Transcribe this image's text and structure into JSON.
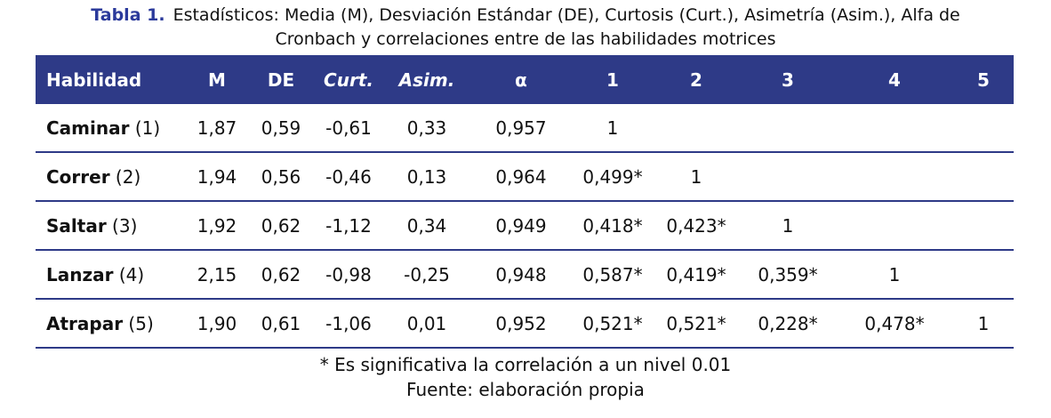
{
  "colors": {
    "header_bg": "#2E3A87",
    "title_accent": "#2B3A9B",
    "row_border": "#2E3A87",
    "header_text": "#ffffff",
    "body_text": "#111111"
  },
  "title": {
    "label": "Tabla 1.",
    "line1": "Estadísticos: Media (M), Desviación Estándar (DE), Curtosis (Curt.), Asimetría (Asim.), Alfa de",
    "line2": "Cronbach y correlaciones entre de las habilidades motrices"
  },
  "table": {
    "columns": [
      "Habilidad",
      "M",
      "DE",
      "Curt.",
      "Asim.",
      "α",
      "1",
      "2",
      "3",
      "4",
      "5"
    ],
    "rows": [
      {
        "name": "Caminar",
        "num": "(1)",
        "values": [
          "1,87",
          "0,59",
          "-0,61",
          "0,33",
          "0,957",
          "1",
          "",
          "",
          "",
          ""
        ]
      },
      {
        "name": "Correr",
        "num": "(2)",
        "values": [
          "1,94",
          "0,56",
          "-0,46",
          "0,13",
          "0,964",
          "0,499*",
          "1",
          "",
          "",
          ""
        ]
      },
      {
        "name": "Saltar",
        "num": "(3)",
        "values": [
          "1,92",
          "0,62",
          "-1,12",
          "0,34",
          "0,949",
          "0,418*",
          "0,423*",
          "1",
          "",
          ""
        ]
      },
      {
        "name": "Lanzar",
        "num": "(4)",
        "values": [
          "2,15",
          "0,62",
          "-0,98",
          "-0,25",
          "0,948",
          "0,587*",
          "0,419*",
          "0,359*",
          "1",
          ""
        ]
      },
      {
        "name": "Atrapar",
        "num": "(5)",
        "values": [
          "1,90",
          "0,61",
          "-1,06",
          "0,01",
          "0,952",
          "0,521*",
          "0,521*",
          "0,228*",
          "0,478*",
          "1"
        ]
      }
    ]
  },
  "footnotes": {
    "significance": "* Es significativa la correlación a un nivel 0.01",
    "source": "Fuente: elaboración propia"
  }
}
